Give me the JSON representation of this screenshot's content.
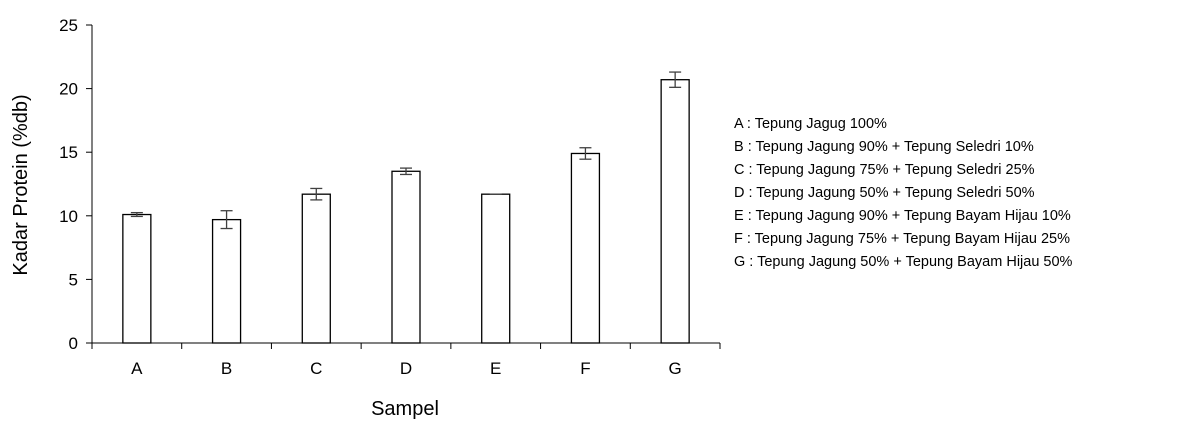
{
  "chart_data": {
    "type": "bar",
    "title": "",
    "xlabel": "Sampel",
    "ylabel": "Kadar Protein (%db)",
    "categories": [
      "A",
      "B",
      "C",
      "D",
      "E",
      "F",
      "G"
    ],
    "values": [
      10.1,
      9.7,
      11.7,
      13.5,
      11.7,
      14.9,
      20.7
    ],
    "error": [
      0.15,
      0.7,
      0.45,
      0.25,
      0.0,
      0.45,
      0.6
    ],
    "ylim": [
      0,
      25
    ],
    "yticks": [
      0,
      5,
      10,
      15,
      20,
      25
    ],
    "grid": false,
    "bar_fill": "#ffffff",
    "bar_stroke": "#000000",
    "error_color": "#404040",
    "legend_position": "right",
    "legend": [
      "A : Tepung Jagug 100%",
      "B : Tepung Jagung 90% + Tepung Seledri 10%",
      "C : Tepung Jagung 75% + Tepung Seledri 25%",
      "D : Tepung Jagung 50% + Tepung Seledri 50%",
      "E : Tepung Jagung 90% + Tepung Bayam Hijau 10%",
      "F : Tepung Jagung 75% + Tepung Bayam Hijau 25%",
      "G : Tepung Jagung 50% + Tepung Bayam Hijau 50%"
    ]
  }
}
